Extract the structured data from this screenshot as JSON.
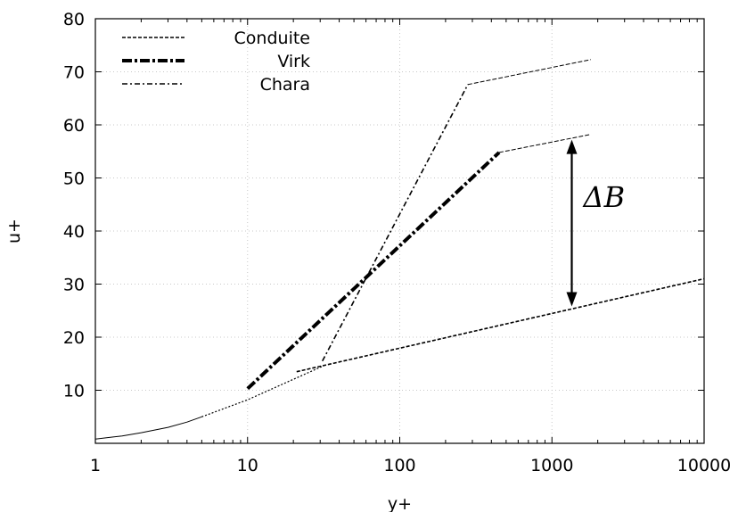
{
  "chart_data": {
    "type": "line",
    "title": "",
    "xlabel": "y+",
    "ylabel": "u+",
    "xscale": "log",
    "xlim": [
      1,
      10000
    ],
    "ylim": [
      0,
      80
    ],
    "xticks": [
      1,
      10,
      100,
      1000,
      10000
    ],
    "xtick_labels": [
      "1",
      "10",
      "100",
      "1000",
      "10000"
    ],
    "yticks": [
      10,
      20,
      30,
      40,
      50,
      60,
      70,
      80
    ],
    "ytick_labels": [
      "10",
      "20",
      "30",
      "40",
      "50",
      "60",
      "70",
      "80"
    ],
    "grid": true,
    "legend_position": "top-left",
    "series": [
      {
        "name": "Conduite",
        "style": "dashed",
        "x": [
          21,
          10000
        ],
        "y": [
          13.5,
          31.0
        ]
      },
      {
        "name": "Virk",
        "style": "thick-dashdot",
        "x": [
          10,
          450
        ],
        "y": [
          10.3,
          54.8
        ]
      },
      {
        "name": "Chara",
        "style": "dashdot",
        "x": [
          31,
          280
        ],
        "y": [
          15.5,
          67.6
        ]
      },
      {
        "style": "solid",
        "x": [
          1,
          1.5,
          2,
          3,
          4,
          5
        ],
        "y": [
          0.8,
          1.4,
          2.0,
          3.0,
          4.0,
          5.0
        ]
      },
      {
        "style": "dotted",
        "x": [
          5,
          10,
          31
        ],
        "y": [
          5.0,
          8.2,
          14.5
        ]
      },
      {
        "style": "thin-dashed",
        "x": [
          280,
          1800
        ],
        "y": [
          67.6,
          72.3
        ]
      },
      {
        "style": "thin-dashed",
        "x": [
          450,
          1800
        ],
        "y": [
          54.8,
          58.2
        ]
      }
    ],
    "annotation": {
      "label": "ΔB",
      "x": 1350,
      "y_from": 25.8,
      "y_to": 57.2
    }
  }
}
